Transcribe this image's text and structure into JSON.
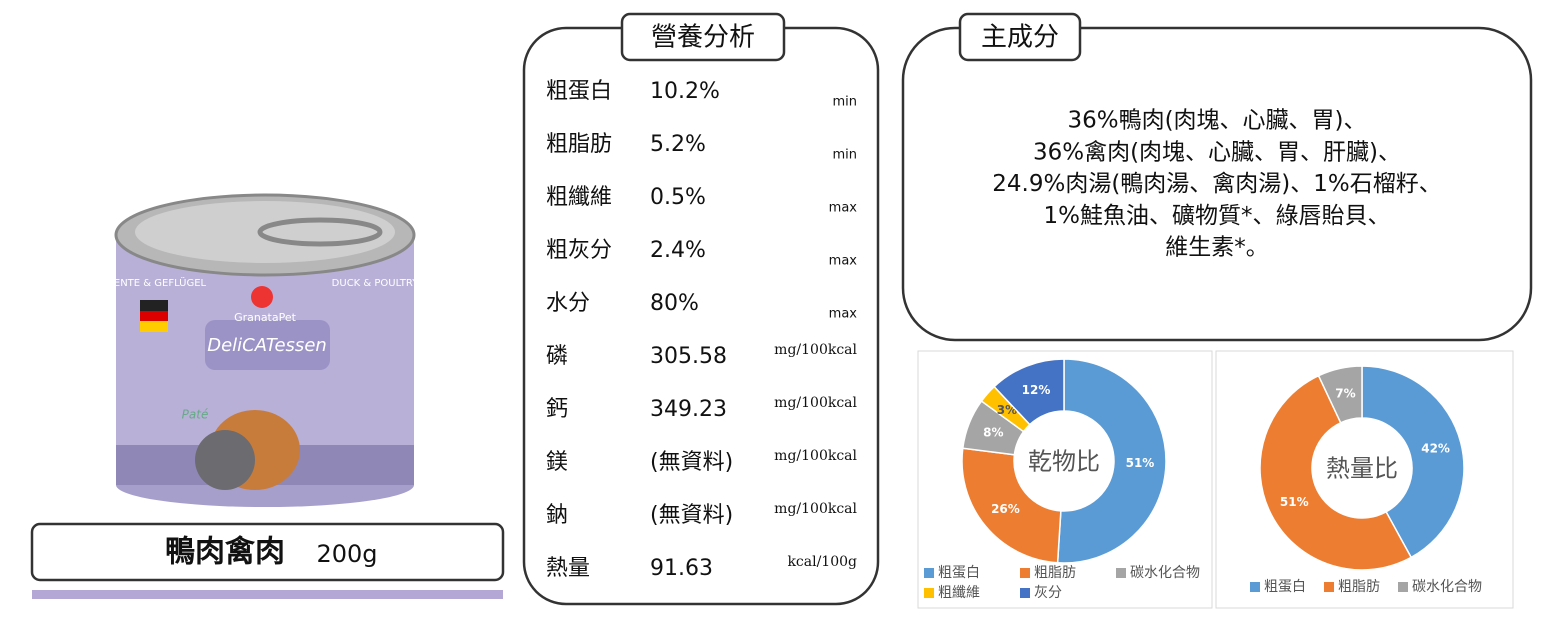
{
  "product": {
    "name": "鴨肉禽肉",
    "weight": "200g",
    "can_labels": [
      "GranataPet",
      "DeliCATessen",
      "Paté",
      "ENTE & GEFLÜGEL",
      "DUCK & POULTRY"
    ]
  },
  "nutrition": {
    "title": "營養分析",
    "rows": [
      {
        "name": "粗蛋白",
        "value": "10.2%",
        "unit": "min"
      },
      {
        "name": "粗脂肪",
        "value": "5.2%",
        "unit": "min"
      },
      {
        "name": "粗纖維",
        "value": "0.5%",
        "unit": "max"
      },
      {
        "name": "粗灰分",
        "value": "2.4%",
        "unit": "max"
      },
      {
        "name": "水分",
        "value": "80%",
        "unit": "max"
      },
      {
        "name": "磷",
        "value": "305.58",
        "unit": "mg/100kcal"
      },
      {
        "name": "鈣",
        "value": "349.23",
        "unit": "mg/100kcal"
      },
      {
        "name": "鎂",
        "value": "(無資料)",
        "unit": "mg/100kcal"
      },
      {
        "name": "鈉",
        "value": "(無資料)",
        "unit": "mg/100kcal"
      },
      {
        "name": "熱量",
        "value": "91.63",
        "unit": "kcal/100g"
      }
    ]
  },
  "ingredients": {
    "title": "主成分",
    "lines": [
      "36%鴨肉(肉塊、心臟、胃)、",
      "36%禽肉(肉塊、心臟、胃、肝臟)、",
      "24.9%肉湯(鴨肉湯、禽肉湯)、1%石榴籽、",
      "1%鮭魚油、礦物質*、綠唇貽貝、",
      "維生素*。"
    ]
  },
  "chart_data": [
    {
      "type": "donut",
      "title": "乾物比",
      "categories": [
        "粗蛋白",
        "粗脂肪",
        "碳水化合物",
        "粗纖維",
        "灰分"
      ],
      "values": [
        51,
        26,
        8,
        3,
        12
      ],
      "value_labels": [
        "51%",
        "26%",
        "8%",
        "3%",
        "12%"
      ],
      "colors": [
        "#5b9bd5",
        "#ed7d31",
        "#a5a5a5",
        "#ffc000",
        "#4472c4"
      ],
      "legend": "bottom"
    },
    {
      "type": "donut",
      "title": "熱量比",
      "categories": [
        "粗蛋白",
        "粗脂肪",
        "碳水化合物"
      ],
      "values": [
        42,
        51,
        7
      ],
      "value_labels": [
        "42%",
        "51%",
        "7%"
      ],
      "colors": [
        "#5b9bd5",
        "#ed7d31",
        "#a5a5a5"
      ],
      "legend": "bottom"
    }
  ]
}
